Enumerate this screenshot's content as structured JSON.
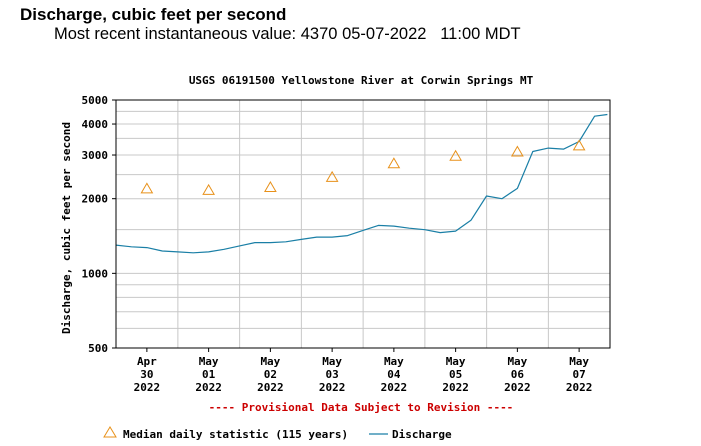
{
  "header": {
    "title": "Discharge, cubic feet per second",
    "recent_label": "Most recent instantaneous value:",
    "recent_value": "4370",
    "recent_date": "05-07-2022",
    "recent_time": "11:00 MDT"
  },
  "chart_data": {
    "type": "line",
    "title": "USGS 06191500 Yellowstone River at Corwin Springs MT",
    "ylabel": "Discharge, cubic feet per second",
    "xlabel": "",
    "yscale": "log",
    "ylim": [
      500,
      5000
    ],
    "xlim": [
      "2022-04-29 12:00",
      "2022-05-07 12:00"
    ],
    "yticks": [
      500,
      1000,
      2000,
      3000,
      4000,
      5000
    ],
    "xticks": [
      {
        "x": "2022-04-30",
        "label": [
          "Apr",
          "30",
          "2022"
        ]
      },
      {
        "x": "2022-05-01",
        "label": [
          "May",
          "01",
          "2022"
        ]
      },
      {
        "x": "2022-05-02",
        "label": [
          "May",
          "02",
          "2022"
        ]
      },
      {
        "x": "2022-05-03",
        "label": [
          "May",
          "03",
          "2022"
        ]
      },
      {
        "x": "2022-05-04",
        "label": [
          "May",
          "04",
          "2022"
        ]
      },
      {
        "x": "2022-05-05",
        "label": [
          "May",
          "05",
          "2022"
        ]
      },
      {
        "x": "2022-05-06",
        "label": [
          "May",
          "06",
          "2022"
        ]
      },
      {
        "x": "2022-05-07",
        "label": [
          "May",
          "07",
          "2022"
        ]
      }
    ],
    "grid": true,
    "note": "---- Provisional Data Subject to Revision ----",
    "series": [
      {
        "name": "Discharge",
        "kind": "line",
        "color": "#1a7fa6",
        "points": [
          [
            "2022-04-29 12:00",
            1300
          ],
          [
            "2022-04-29 18:00",
            1280
          ],
          [
            "2022-04-30 00:00",
            1270
          ],
          [
            "2022-04-30 06:00",
            1230
          ],
          [
            "2022-04-30 12:00",
            1220
          ],
          [
            "2022-04-30 18:00",
            1210
          ],
          [
            "2022-05-01 00:00",
            1220
          ],
          [
            "2022-05-01 06:00",
            1250
          ],
          [
            "2022-05-01 12:00",
            1290
          ],
          [
            "2022-05-01 18:00",
            1330
          ],
          [
            "2022-05-02 00:00",
            1330
          ],
          [
            "2022-05-02 06:00",
            1340
          ],
          [
            "2022-05-02 12:00",
            1370
          ],
          [
            "2022-05-02 18:00",
            1400
          ],
          [
            "2022-05-03 00:00",
            1400
          ],
          [
            "2022-05-03 06:00",
            1420
          ],
          [
            "2022-05-03 12:00",
            1490
          ],
          [
            "2022-05-03 18:00",
            1560
          ],
          [
            "2022-05-04 00:00",
            1550
          ],
          [
            "2022-05-04 06:00",
            1520
          ],
          [
            "2022-05-04 12:00",
            1500
          ],
          [
            "2022-05-04 18:00",
            1460
          ],
          [
            "2022-05-05 00:00",
            1480
          ],
          [
            "2022-05-05 06:00",
            1640
          ],
          [
            "2022-05-05 12:00",
            2050
          ],
          [
            "2022-05-05 18:00",
            2000
          ],
          [
            "2022-05-06 00:00",
            2200
          ],
          [
            "2022-05-06 06:00",
            3100
          ],
          [
            "2022-05-06 12:00",
            3200
          ],
          [
            "2022-05-06 18:00",
            3170
          ],
          [
            "2022-05-07 00:00",
            3400
          ],
          [
            "2022-05-07 06:00",
            4300
          ],
          [
            "2022-05-07 11:00",
            4370
          ]
        ]
      },
      {
        "name": "Median daily statistic (115 years)",
        "kind": "marker",
        "color": "#e8911a",
        "points": [
          [
            "2022-04-30 00:00",
            2200
          ],
          [
            "2022-05-01 00:00",
            2170
          ],
          [
            "2022-05-02 00:00",
            2230
          ],
          [
            "2022-05-03 00:00",
            2450
          ],
          [
            "2022-05-04 00:00",
            2780
          ],
          [
            "2022-05-05 00:00",
            2980
          ],
          [
            "2022-05-06 00:00",
            3100
          ],
          [
            "2022-05-07 00:00",
            3280
          ]
        ]
      }
    ],
    "legend": {
      "placement": "bottom",
      "median_label": "Median daily statistic (115 years)",
      "discharge_label": "Discharge"
    }
  }
}
